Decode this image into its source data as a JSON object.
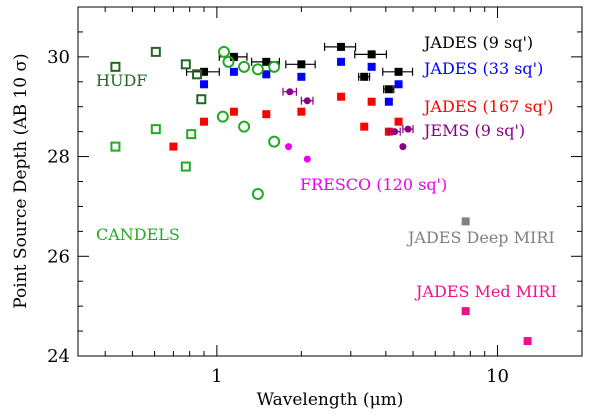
{
  "chart_data": {
    "type": "scatter",
    "title": "",
    "xlabel": "Wavelength (μm)",
    "ylabel": "Point Source Depth (AB 10 σ)",
    "x_scale": "log",
    "xlim": [
      0.32,
      20
    ],
    "ylim": [
      24,
      31
    ],
    "x_ticks": [
      {
        "value": 1,
        "label": "1"
      },
      {
        "value": 10,
        "label": "10"
      }
    ],
    "y_ticks": [
      {
        "value": 24,
        "label": "24"
      },
      {
        "value": 26,
        "label": "26"
      },
      {
        "value": 28,
        "label": "28"
      },
      {
        "value": 30,
        "label": "30"
      }
    ],
    "grid": false,
    "series": [
      {
        "name": "JADES (9 sq')",
        "label_text": "JADES (9 sq')",
        "color": "#000000",
        "marker": "filled-square",
        "error_bars": true,
        "points": [
          {
            "x": 0.9,
            "y": 29.7,
            "xerr": [
              0.78,
              1.02
            ]
          },
          {
            "x": 1.15,
            "y": 30.0,
            "xerr": [
              1.02,
              1.28
            ]
          },
          {
            "x": 1.5,
            "y": 29.9,
            "xerr": [
              1.33,
              1.67
            ]
          },
          {
            "x": 2.0,
            "y": 29.85,
            "xerr": [
              1.76,
              2.24
            ]
          },
          {
            "x": 2.77,
            "y": 30.2,
            "xerr": [
              2.42,
              3.12
            ]
          },
          {
            "x": 3.35,
            "y": 29.6,
            "xerr": [
              3.2,
              3.5
            ]
          },
          {
            "x": 3.56,
            "y": 30.05,
            "xerr": [
              3.1,
              4.02
            ]
          },
          {
            "x": 4.1,
            "y": 29.35,
            "xerr": [
              3.93,
              4.27
            ]
          },
          {
            "x": 4.44,
            "y": 29.7,
            "xerr": [
              3.9,
              4.98
            ]
          }
        ]
      },
      {
        "name": "JADES (33 sq')",
        "label_text": "JADES (33 sq')",
        "color": "#0000ff",
        "marker": "filled-square",
        "points": [
          {
            "x": 0.9,
            "y": 29.45
          },
          {
            "x": 1.15,
            "y": 29.7
          },
          {
            "x": 1.5,
            "y": 29.65
          },
          {
            "x": 2.0,
            "y": 29.6
          },
          {
            "x": 2.77,
            "y": 29.9
          },
          {
            "x": 3.56,
            "y": 29.8
          },
          {
            "x": 4.1,
            "y": 29.1
          },
          {
            "x": 4.44,
            "y": 29.45
          }
        ]
      },
      {
        "name": "JADES (167 sq')",
        "label_text": "JADES (167 sq')",
        "color": "#ff0000",
        "marker": "filled-square",
        "points": [
          {
            "x": 0.7,
            "y": 28.2
          },
          {
            "x": 0.9,
            "y": 28.7
          },
          {
            "x": 1.15,
            "y": 28.9
          },
          {
            "x": 1.5,
            "y": 28.85
          },
          {
            "x": 2.0,
            "y": 28.9
          },
          {
            "x": 2.77,
            "y": 29.2
          },
          {
            "x": 3.35,
            "y": 28.6
          },
          {
            "x": 3.56,
            "y": 29.1
          },
          {
            "x": 4.1,
            "y": 28.5
          },
          {
            "x": 4.44,
            "y": 28.7
          }
        ]
      },
      {
        "name": "JEMS (9 sq')",
        "label_text": "JEMS  (9 sq')",
        "color": "#880088",
        "marker": "filled-circle",
        "error_bars": true,
        "points": [
          {
            "x": 1.82,
            "y": 29.3,
            "xerr": [
              1.72,
              1.92
            ]
          },
          {
            "x": 2.1,
            "y": 29.12,
            "xerr": [
              2.0,
              2.2
            ]
          },
          {
            "x": 4.3,
            "y": 28.5,
            "xerr": [
              4.1,
              4.5
            ]
          },
          {
            "x": 4.6,
            "y": 28.2
          },
          {
            "x": 4.8,
            "y": 28.55,
            "xerr": [
              4.6,
              5.0
            ]
          }
        ]
      },
      {
        "name": "FRESCO (120 sq')",
        "label_text": "FRESCO (120 sq')",
        "color": "#ee00ee",
        "marker": "filled-circle",
        "points": [
          {
            "x": 1.8,
            "y": 28.2
          },
          {
            "x": 2.1,
            "y": 27.95
          }
        ]
      },
      {
        "name": "HUDF",
        "label_text": "HUDF",
        "color": "#226622",
        "marker": "open-square",
        "points": [
          {
            "x": 0.435,
            "y": 29.8
          },
          {
            "x": 0.606,
            "y": 30.1
          },
          {
            "x": 0.775,
            "y": 29.85
          },
          {
            "x": 0.85,
            "y": 29.65
          },
          {
            "x": 0.88,
            "y": 29.15
          }
        ]
      },
      {
        "name": "CANDELS",
        "label_text": "CANDELS",
        "color": "#22aa22",
        "marker": "open-square",
        "points": [
          {
            "x": 0.435,
            "y": 28.2
          },
          {
            "x": 0.606,
            "y": 28.55
          },
          {
            "x": 0.775,
            "y": 27.8
          },
          {
            "x": 0.81,
            "y": 28.45
          }
        ]
      },
      {
        "name": "CANDELS",
        "label_text": "",
        "color": "#22aa22",
        "marker": "open-circle",
        "points": [
          {
            "x": 1.05,
            "y": 28.8
          },
          {
            "x": 1.06,
            "y": 30.1
          },
          {
            "x": 1.1,
            "y": 29.9
          },
          {
            "x": 1.25,
            "y": 28.6
          },
          {
            "x": 1.25,
            "y": 29.8
          },
          {
            "x": 1.4,
            "y": 29.75
          },
          {
            "x": 1.4,
            "y": 27.25
          },
          {
            "x": 1.6,
            "y": 28.3
          },
          {
            "x": 1.6,
            "y": 29.8
          }
        ]
      },
      {
        "name": "JADES Deep MIRI",
        "label_text": "JADES Deep MIRI",
        "color": "#808080",
        "marker": "filled-square",
        "points": [
          {
            "x": 7.7,
            "y": 26.7
          }
        ]
      },
      {
        "name": "JADES Med MIRI",
        "label_text": "JADES Med MIRI",
        "color": "#ee1188",
        "marker": "filled-square",
        "points": [
          {
            "x": 7.7,
            "y": 24.9
          },
          {
            "x": 12.8,
            "y": 24.3
          }
        ]
      }
    ]
  }
}
